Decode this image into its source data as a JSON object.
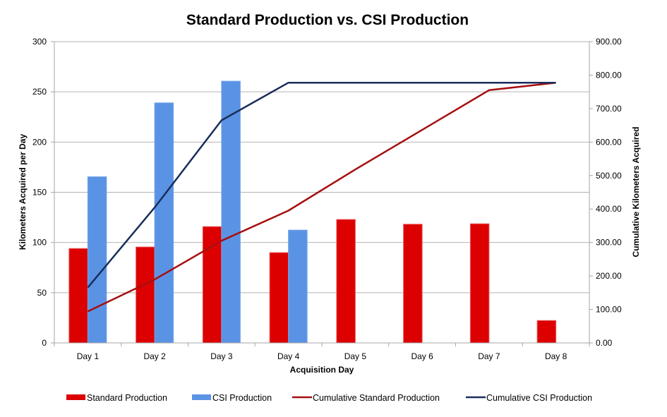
{
  "chart_data": {
    "type": "bar",
    "title": "Standard Production vs. CSI Production",
    "xlabel": "Acquisition Day",
    "ylabel": "Kilometers Acquired per Day",
    "y2label": "Cumulative Kilometers Acquired",
    "categories": [
      "Day 1",
      "Day 2",
      "Day 3",
      "Day 4",
      "Day 5",
      "Day 6",
      "Day 7",
      "Day 8"
    ],
    "ylim": [
      0,
      300
    ],
    "yticks": [
      0,
      50,
      100,
      150,
      200,
      250,
      300
    ],
    "y2lim": [
      0,
      900
    ],
    "y2ticks": [
      "0.00",
      "100.00",
      "200.00",
      "300.00",
      "400.00",
      "500.00",
      "600.00",
      "700.00",
      "800.00",
      "900.00"
    ],
    "grid": true,
    "legend_position": "bottom",
    "series": [
      {
        "name": "Standard Production",
        "kind": "bar",
        "axis": "left",
        "color": "#DD0000",
        "values": [
          94,
          95.5,
          115.8,
          89.9,
          122.9,
          118.2,
          118.6,
          22.3
        ]
      },
      {
        "name": "CSI Production",
        "kind": "bar",
        "axis": "left",
        "color": "#5B93E4",
        "values": [
          165.4,
          239,
          260.6,
          112.3,
          null,
          null,
          null,
          null
        ]
      },
      {
        "name": "Cumulative Standard Production",
        "kind": "line",
        "axis": "right",
        "color": "#A50F10",
        "values": [
          94,
          189.5,
          305.3,
          395.2,
          518.1,
          636.3,
          754.9,
          777.2
        ]
      },
      {
        "name": "Cumulative CSI Production",
        "kind": "line",
        "axis": "right",
        "color": "#1A2E5C",
        "values": [
          165.4,
          404.4,
          665,
          777.3,
          777.3,
          777.3,
          777.3,
          777.3
        ]
      }
    ]
  }
}
